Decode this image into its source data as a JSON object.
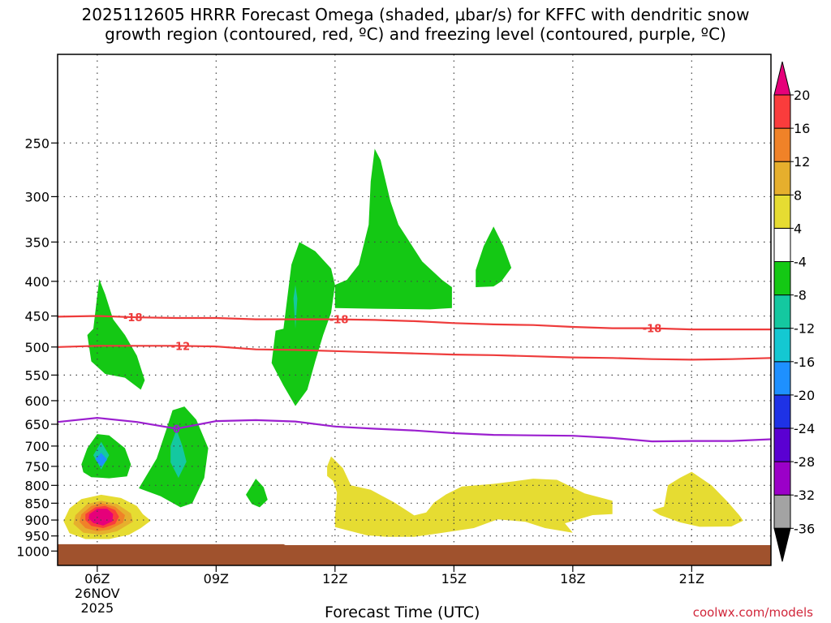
{
  "title_line1": "2025112605 HRRR Forecast Omega (shaded, μbar/s) for KFFC with dendritic snow",
  "title_line2": "growth region (contoured, red, ºC) and freezing level (contoured, purple, ºC)",
  "credit": "coolwx.com/models",
  "chart_data": {
    "type": "time-height cross section",
    "title": "2025112605 HRRR Forecast Omega (shaded, μbar/s) for KFFC with dendritic snow growth region (contoured, red, ºC) and freezing level (contoured, purple, ºC)",
    "xlabel": "Forecast Time (UTC)",
    "ylabel": "",
    "x_range_hours_utc": [
      5,
      23
    ],
    "x_ticks": [
      {
        "hour": 6,
        "label": "06Z",
        "sub1": "26NOV",
        "sub2": "2025"
      },
      {
        "hour": 9,
        "label": "09Z"
      },
      {
        "hour": 12,
        "label": "12Z"
      },
      {
        "hour": 15,
        "label": "15Z"
      },
      {
        "hour": 18,
        "label": "18Z"
      },
      {
        "hour": 21,
        "label": "21Z"
      }
    ],
    "y_axis": "pressure (mb), log scale, inverted",
    "y_range_mb": [
      1050,
      185
    ],
    "y_ticks": [
      250,
      300,
      350,
      400,
      450,
      500,
      550,
      600,
      650,
      700,
      750,
      800,
      850,
      900,
      950,
      1000
    ],
    "grid": true,
    "colorbar": {
      "levels": [
        -36,
        -32,
        -28,
        -24,
        -20,
        -16,
        -12,
        -8,
        -4,
        4,
        8,
        12,
        16,
        20
      ],
      "colors": [
        "#000000",
        "#a3a3a3",
        "#9b00c8",
        "#5a00d2",
        "#1e32e6",
        "#1e90ff",
        "#14c8d2",
        "#14c8a0",
        "#14c814",
        "#ffffff",
        "#e6dc32",
        "#e6af2d",
        "#f08228",
        "#fa3c3c",
        "#e6007a"
      ]
    },
    "contours": [
      {
        "kind": "dendritic snow growth region",
        "level": -18,
        "color": "#ee3b3b",
        "points": [
          [
            5,
            451
          ],
          [
            6,
            450
          ],
          [
            7,
            452
          ],
          [
            8,
            453
          ],
          [
            9,
            453
          ],
          [
            10,
            455
          ],
          [
            11,
            455
          ],
          [
            12,
            455
          ],
          [
            13,
            456
          ],
          [
            14,
            458
          ],
          [
            15,
            461
          ],
          [
            16,
            463
          ],
          [
            17,
            464
          ],
          [
            18,
            467
          ],
          [
            19,
            469
          ],
          [
            20,
            469
          ],
          [
            21,
            471
          ],
          [
            22,
            471
          ],
          [
            23,
            471
          ]
        ],
        "labels": [
          {
            "x": 6.9,
            "text": "-18"
          },
          {
            "x": 12.1,
            "text": "-18"
          },
          {
            "x": 20.0,
            "text": "-18"
          }
        ]
      },
      {
        "kind": "dendritic snow growth region",
        "level": -12,
        "color": "#ee3b3b",
        "points": [
          [
            5,
            500
          ],
          [
            6,
            498
          ],
          [
            7,
            498
          ],
          [
            8,
            498
          ],
          [
            9,
            499
          ],
          [
            10,
            504
          ],
          [
            11,
            505
          ],
          [
            12,
            507
          ],
          [
            13,
            509
          ],
          [
            14,
            511
          ],
          [
            15,
            513
          ],
          [
            16,
            514
          ],
          [
            17,
            516
          ],
          [
            18,
            518
          ],
          [
            19,
            519
          ],
          [
            20,
            521
          ],
          [
            21,
            522
          ],
          [
            22,
            521
          ],
          [
            23,
            519
          ]
        ],
        "labels": [
          {
            "x": 8.1,
            "text": "-12"
          }
        ]
      },
      {
        "kind": "freezing level",
        "level": 0,
        "color": "#9b1fcf",
        "points": [
          [
            5,
            645
          ],
          [
            6,
            636
          ],
          [
            7,
            645
          ],
          [
            8,
            660
          ],
          [
            9,
            643
          ],
          [
            10,
            641
          ],
          [
            11,
            644
          ],
          [
            12,
            655
          ],
          [
            13,
            660
          ],
          [
            14,
            664
          ],
          [
            15,
            670
          ],
          [
            16,
            674
          ],
          [
            17,
            675
          ],
          [
            18,
            676
          ],
          [
            19,
            681
          ],
          [
            20,
            689
          ],
          [
            21,
            688
          ],
          [
            22,
            688
          ],
          [
            23,
            684
          ]
        ],
        "labels": [
          {
            "x": 8.0,
            "text": "0"
          }
        ]
      }
    ],
    "shaded_regions": [
      {
        "level": -8,
        "color": "#14c814",
        "points": [
          [
            5.9,
            470
          ],
          [
            6.0,
            420
          ],
          [
            6.05,
            397
          ],
          [
            6.2,
            418
          ],
          [
            6.4,
            455
          ],
          [
            6.7,
            480
          ],
          [
            7.0,
            515
          ],
          [
            7.2,
            560
          ],
          [
            7.1,
            578
          ],
          [
            6.7,
            555
          ],
          [
            6.2,
            548
          ],
          [
            5.85,
            525
          ],
          [
            5.75,
            480
          ]
        ]
      },
      {
        "level": -8,
        "color": "#14c814",
        "points": [
          [
            10.7,
            470
          ],
          [
            10.9,
            378
          ],
          [
            11.1,
            350
          ],
          [
            11.5,
            361
          ],
          [
            11.9,
            383
          ],
          [
            12.0,
            405
          ],
          [
            11.9,
            445
          ],
          [
            11.7,
            480
          ],
          [
            11.5,
            525
          ],
          [
            11.3,
            578
          ],
          [
            11.0,
            611
          ],
          [
            10.7,
            570
          ],
          [
            10.4,
            528
          ],
          [
            10.45,
            500
          ],
          [
            10.5,
            473
          ]
        ]
      },
      {
        "level": -8,
        "color": "#14c814",
        "points": [
          [
            12.0,
            405
          ],
          [
            12.3,
            398
          ],
          [
            12.6,
            378
          ],
          [
            12.85,
            330
          ],
          [
            12.9,
            285
          ],
          [
            13.0,
            255
          ],
          [
            13.15,
            265
          ],
          [
            13.4,
            305
          ],
          [
            13.6,
            330
          ],
          [
            14.2,
            374
          ],
          [
            14.7,
            398
          ],
          [
            14.95,
            408
          ],
          [
            14.95,
            438
          ],
          [
            14.4,
            440
          ],
          [
            13.0,
            439
          ],
          [
            12.0,
            438
          ]
        ]
      },
      {
        "level": -8,
        "color": "#14c814",
        "points": [
          [
            15.55,
            385
          ],
          [
            15.75,
            355
          ],
          [
            16.0,
            332
          ],
          [
            16.25,
            355
          ],
          [
            16.45,
            382
          ],
          [
            16.2,
            400
          ],
          [
            16.0,
            407
          ],
          [
            15.55,
            408
          ]
        ]
      },
      {
        "level": -8,
        "color": "#14c814",
        "points": [
          [
            5.6,
            745
          ],
          [
            5.75,
            705
          ],
          [
            6.0,
            672
          ],
          [
            6.3,
            675
          ],
          [
            6.7,
            705
          ],
          [
            6.85,
            745
          ],
          [
            6.75,
            776
          ],
          [
            6.3,
            781
          ],
          [
            5.85,
            778
          ],
          [
            5.65,
            765
          ]
        ]
      },
      {
        "level": -8,
        "color": "#14c814",
        "points": [
          [
            7.05,
            808
          ],
          [
            7.5,
            730
          ],
          [
            7.75,
            660
          ],
          [
            7.9,
            620
          ],
          [
            8.2,
            612
          ],
          [
            8.5,
            640
          ],
          [
            8.8,
            705
          ],
          [
            8.7,
            780
          ],
          [
            8.4,
            850
          ],
          [
            8.1,
            862
          ],
          [
            7.6,
            830
          ]
        ]
      },
      {
        "level": -8,
        "color": "#14c814",
        "points": [
          [
            9.75,
            826
          ],
          [
            9.9,
            800
          ],
          [
            10.0,
            782
          ],
          [
            10.2,
            805
          ],
          [
            10.3,
            840
          ],
          [
            10.1,
            862
          ],
          [
            9.9,
            852
          ]
        ]
      },
      {
        "level": -12,
        "color": "#14c8a0",
        "points": [
          [
            11.0,
            405
          ],
          [
            11.05,
            424
          ],
          [
            11.0,
            470
          ],
          [
            10.95,
            424
          ]
        ]
      },
      {
        "level": -12,
        "color": "#14c8a0",
        "points": [
          [
            5.9,
            722
          ],
          [
            6.1,
            690
          ],
          [
            6.3,
            722
          ],
          [
            6.1,
            758
          ]
        ]
      },
      {
        "level": -12,
        "color": "#14c8a0",
        "points": [
          [
            7.85,
            700
          ],
          [
            8.0,
            662
          ],
          [
            8.15,
            700
          ],
          [
            8.25,
            738
          ],
          [
            8.05,
            780
          ],
          [
            7.85,
            740
          ]
        ]
      },
      {
        "level": -16,
        "color": "#1e90ff",
        "points": [
          [
            5.95,
            732
          ],
          [
            6.1,
            716
          ],
          [
            6.25,
            733
          ],
          [
            6.1,
            751
          ]
        ]
      },
      {
        "level": 4,
        "color": "#e6dc32",
        "points": [
          [
            5.3,
            865
          ],
          [
            5.6,
            838
          ],
          [
            6.1,
            826
          ],
          [
            6.6,
            835
          ],
          [
            7.0,
            858
          ],
          [
            7.15,
            882
          ],
          [
            7.35,
            902
          ],
          [
            7.1,
            925
          ],
          [
            6.8,
            946
          ],
          [
            6.3,
            960
          ],
          [
            5.7,
            960
          ],
          [
            5.3,
            941
          ],
          [
            5.15,
            903
          ]
        ]
      },
      {
        "level": 4,
        "color": "#e6dc32",
        "points": [
          [
            11.8,
            750
          ],
          [
            11.9,
            725
          ],
          [
            12.2,
            755
          ],
          [
            12.4,
            800
          ],
          [
            12.9,
            812
          ],
          [
            13.5,
            848
          ],
          [
            14.0,
            886
          ],
          [
            14.3,
            877
          ],
          [
            14.5,
            848
          ],
          [
            14.8,
            825
          ],
          [
            15.2,
            803
          ],
          [
            16.0,
            796
          ],
          [
            16.6,
            788
          ],
          [
            17.0,
            782
          ],
          [
            17.6,
            785
          ],
          [
            18.3,
            822
          ],
          [
            19.0,
            843
          ],
          [
            19.0,
            882
          ],
          [
            18.5,
            885
          ],
          [
            17.8,
            910
          ],
          [
            18.0,
            940
          ],
          [
            17.3,
            925
          ],
          [
            16.8,
            905
          ],
          [
            16.1,
            898
          ],
          [
            15.5,
            925
          ],
          [
            14.6,
            942
          ],
          [
            14.0,
            953
          ],
          [
            13.3,
            953
          ],
          [
            12.8,
            948
          ],
          [
            12.0,
            922
          ],
          [
            12.0,
            890
          ],
          [
            12.05,
            820
          ],
          [
            11.95,
            788
          ],
          [
            11.8,
            775
          ]
        ]
      },
      {
        "level": 4,
        "color": "#e6dc32",
        "points": [
          [
            20.0,
            870
          ],
          [
            20.3,
            860
          ],
          [
            20.4,
            800
          ],
          [
            20.7,
            780
          ],
          [
            21.0,
            764
          ],
          [
            21.5,
            800
          ],
          [
            21.9,
            845
          ],
          [
            22.2,
            885
          ],
          [
            22.3,
            902
          ],
          [
            22.0,
            920
          ],
          [
            21.2,
            921
          ],
          [
            20.7,
            907
          ],
          [
            20.2,
            885
          ]
        ]
      },
      {
        "level": 8,
        "color": "#e6af2d",
        "points": [
          [
            5.45,
            885
          ],
          [
            5.75,
            852
          ],
          [
            6.1,
            843
          ],
          [
            6.5,
            852
          ],
          [
            6.85,
            880
          ],
          [
            6.9,
            905
          ],
          [
            6.5,
            935
          ],
          [
            6.1,
            946
          ],
          [
            5.65,
            940
          ],
          [
            5.4,
            912
          ]
        ]
      },
      {
        "level": 12,
        "color": "#f08228",
        "points": [
          [
            5.6,
            883
          ],
          [
            5.85,
            858
          ],
          [
            6.1,
            850
          ],
          [
            6.45,
            860
          ],
          [
            6.7,
            885
          ],
          [
            6.65,
            908
          ],
          [
            6.3,
            930
          ],
          [
            6.0,
            935
          ],
          [
            5.7,
            925
          ],
          [
            5.55,
            905
          ]
        ]
      },
      {
        "level": 16,
        "color": "#fa3c3c",
        "points": [
          [
            5.7,
            882
          ],
          [
            5.95,
            862
          ],
          [
            6.2,
            858
          ],
          [
            6.45,
            870
          ],
          [
            6.55,
            890
          ],
          [
            6.45,
            912
          ],
          [
            6.15,
            925
          ],
          [
            5.85,
            918
          ],
          [
            5.7,
            900
          ]
        ]
      },
      {
        "level": 20,
        "color": "#e6007a",
        "points": [
          [
            5.8,
            882
          ],
          [
            6.0,
            866
          ],
          [
            6.25,
            866
          ],
          [
            6.4,
            882
          ],
          [
            6.38,
            904
          ],
          [
            6.15,
            917
          ],
          [
            5.9,
            909
          ],
          [
            5.78,
            895
          ]
        ]
      }
    ],
    "terrain": {
      "color": "#a0522d",
      "top_points": [
        [
          5,
          977
        ],
        [
          10.7,
          977
        ],
        [
          10.75,
          980
        ],
        [
          23,
          980
        ]
      ]
    }
  }
}
